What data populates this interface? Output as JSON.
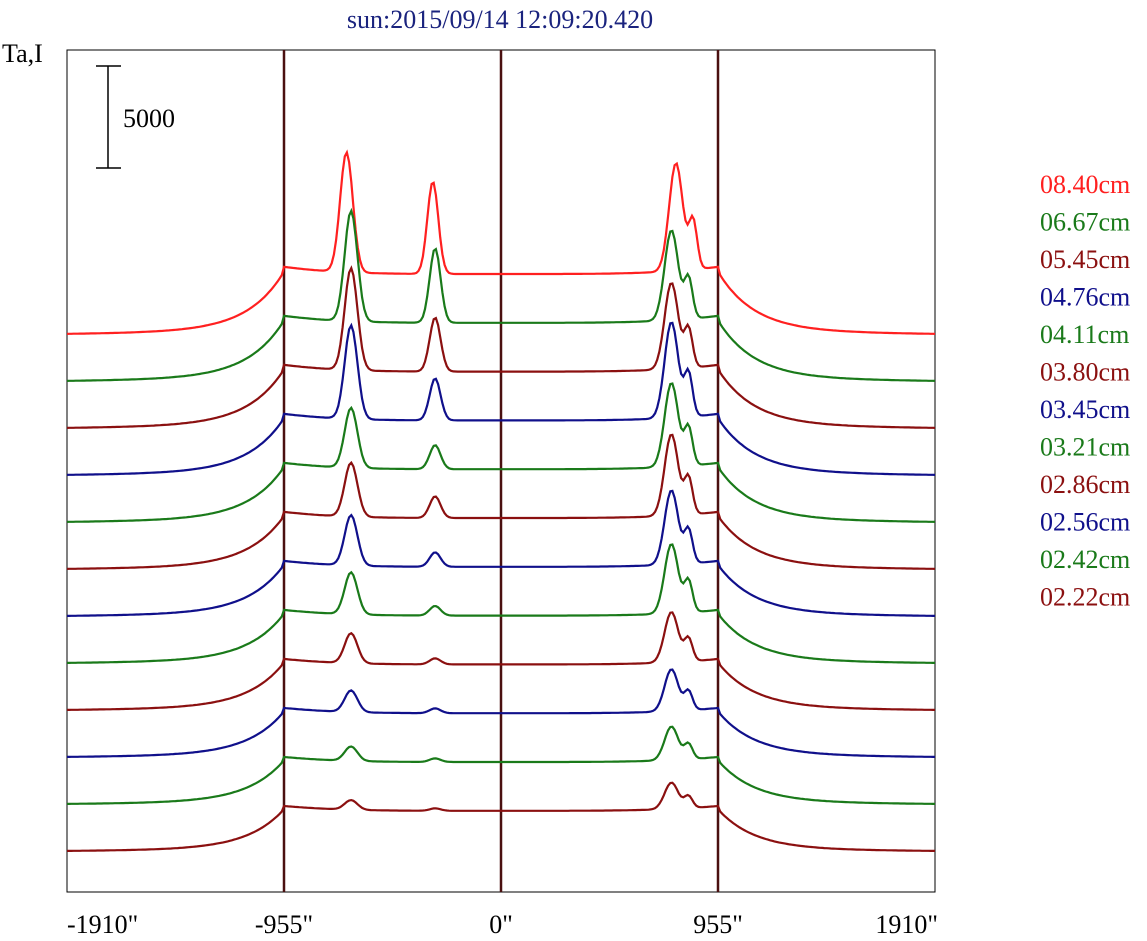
{
  "chart_data": {
    "type": "line",
    "title": "sun:2015/09/14 12:09:20.420",
    "ylabel": "Ta,I",
    "scale_bar_label": "5000",
    "scale_bar_value": 5000,
    "xlim": [
      -1910,
      1910
    ],
    "x_ticks": [
      {
        "value": -1910,
        "label": "-1910\""
      },
      {
        "value": -955,
        "label": "-955\""
      },
      {
        "value": 0,
        "label": "0\""
      },
      {
        "value": 955,
        "label": "955\""
      },
      {
        "value": 1910,
        "label": "1910\""
      }
    ],
    "vertical_markers": [
      -955,
      0,
      955
    ],
    "grid": false,
    "legend_position": "right",
    "series": [
      {
        "name": "08.40cm",
        "color": "#ff2020",
        "offset": 0,
        "peaks": [
          -680,
          -300,
          770
        ],
        "ph": [
          1.0,
          0.77,
          0.9
        ]
      },
      {
        "name": "06.67cm",
        "color": "#1a7a1a",
        "offset": 1,
        "peaks": [
          -660,
          -290,
          750
        ],
        "ph": [
          0.92,
          0.62,
          0.75
        ]
      },
      {
        "name": "05.45cm",
        "color": "#8b1010",
        "offset": 2,
        "peaks": [
          -660,
          -290,
          750
        ],
        "ph": [
          0.85,
          0.45,
          0.72
        ]
      },
      {
        "name": "04.76cm",
        "color": "#10108b",
        "offset": 3,
        "peaks": [
          -660,
          -290,
          750
        ],
        "ph": [
          0.78,
          0.35,
          0.8
        ]
      },
      {
        "name": "04.11cm",
        "color": "#1a7a1a",
        "offset": 4,
        "peaks": [
          -660,
          -290,
          750
        ],
        "ph": [
          0.5,
          0.2,
          0.7
        ]
      },
      {
        "name": "03.80cm",
        "color": "#8b1010",
        "offset": 5,
        "peaks": [
          -660,
          -290,
          750
        ],
        "ph": [
          0.45,
          0.18,
          0.68
        ]
      },
      {
        "name": "03.45cm",
        "color": "#10108b",
        "offset": 6,
        "peaks": [
          -660,
          -290,
          750
        ],
        "ph": [
          0.42,
          0.12,
          0.62
        ]
      },
      {
        "name": "03.21cm",
        "color": "#1a7a1a",
        "offset": 7,
        "peaks": [
          -660,
          -290,
          750
        ],
        "ph": [
          0.35,
          0.08,
          0.58
        ]
      },
      {
        "name": "02.86cm",
        "color": "#8b1010",
        "offset": 8,
        "peaks": [
          -660,
          -290,
          750
        ],
        "ph": [
          0.25,
          0.05,
          0.42
        ]
      },
      {
        "name": "02.56cm",
        "color": "#10108b",
        "offset": 9,
        "peaks": [
          -660,
          -290,
          750
        ],
        "ph": [
          0.18,
          0.04,
          0.35
        ]
      },
      {
        "name": "02.42cm",
        "color": "#1a7a1a",
        "offset": 10,
        "peaks": [
          -660,
          -290,
          750
        ],
        "ph": [
          0.12,
          0.03,
          0.28
        ]
      },
      {
        "name": "02.22cm",
        "color": "#8b1010",
        "offset": 11,
        "peaks": [
          -660,
          -290,
          750
        ],
        "ph": [
          0.08,
          0.02,
          0.22
        ]
      }
    ]
  }
}
